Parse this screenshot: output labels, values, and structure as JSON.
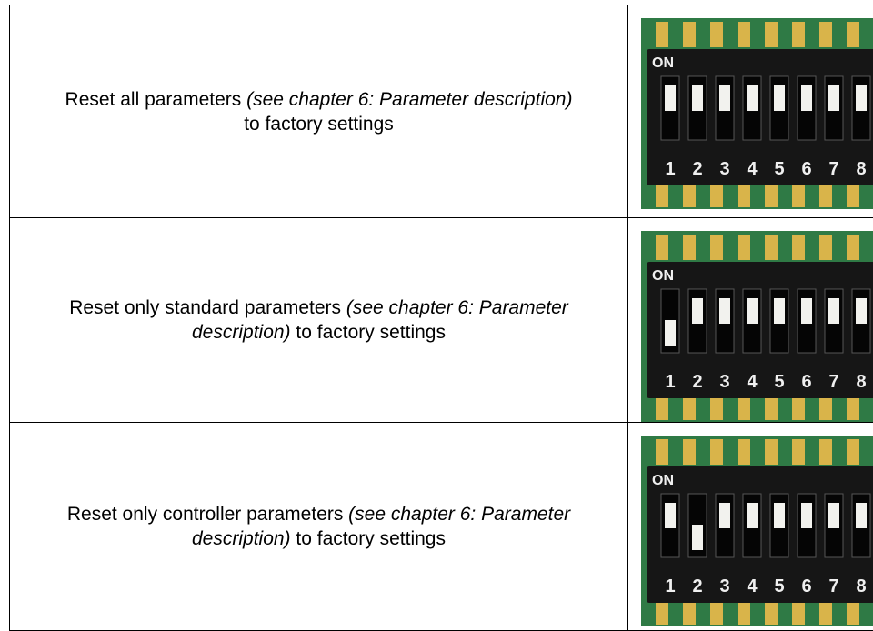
{
  "table": {
    "rows": [
      {
        "text": "Reset all parameters ",
        "reference": "(see chapter 6: Parameter description)",
        "suffix": " to factory settings"
      },
      {
        "text": "Reset only standard parameters ",
        "reference": "(see chapter 6: Parameter description)",
        "suffix": " to factory settings"
      },
      {
        "text": "Reset only controller parameters ",
        "reference": "(see chapter 6: Parameter description)",
        "suffix": " to factory settings"
      }
    ]
  },
  "dip_switch": {
    "on_label": "ON",
    "positions": [
      "1",
      "2",
      "3",
      "4",
      "5",
      "6",
      "7",
      "8"
    ]
  }
}
